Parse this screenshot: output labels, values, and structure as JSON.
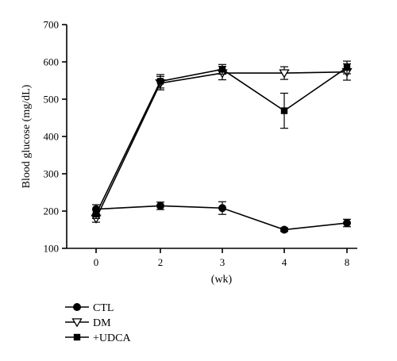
{
  "chart_data": {
    "type": "line",
    "title": "",
    "xlabel": "(wk)",
    "ylabel": "Blood glucose (mg/dL)",
    "categories": [
      "0",
      "2",
      "3",
      "4",
      "8"
    ],
    "ylim": [
      100,
      700
    ],
    "yticks": [
      100,
      200,
      300,
      400,
      500,
      600,
      700
    ],
    "grid": false,
    "legend_position": "bottom-left",
    "series": [
      {
        "name": "CTL",
        "marker": "circle",
        "values": [
          205,
          214,
          208,
          150,
          168
        ],
        "errors": [
          12,
          10,
          17,
          5,
          10
        ]
      },
      {
        "name": "DM",
        "marker": "triangle-down-open",
        "values": [
          180,
          543,
          570,
          570,
          573
        ],
        "errors": [
          10,
          18,
          18,
          17,
          22
        ]
      },
      {
        "name": "+UDCA",
        "marker": "square",
        "values": [
          192,
          548,
          580,
          469,
          585
        ],
        "errors": [
          12,
          18,
          13,
          47,
          17
        ]
      }
    ]
  }
}
